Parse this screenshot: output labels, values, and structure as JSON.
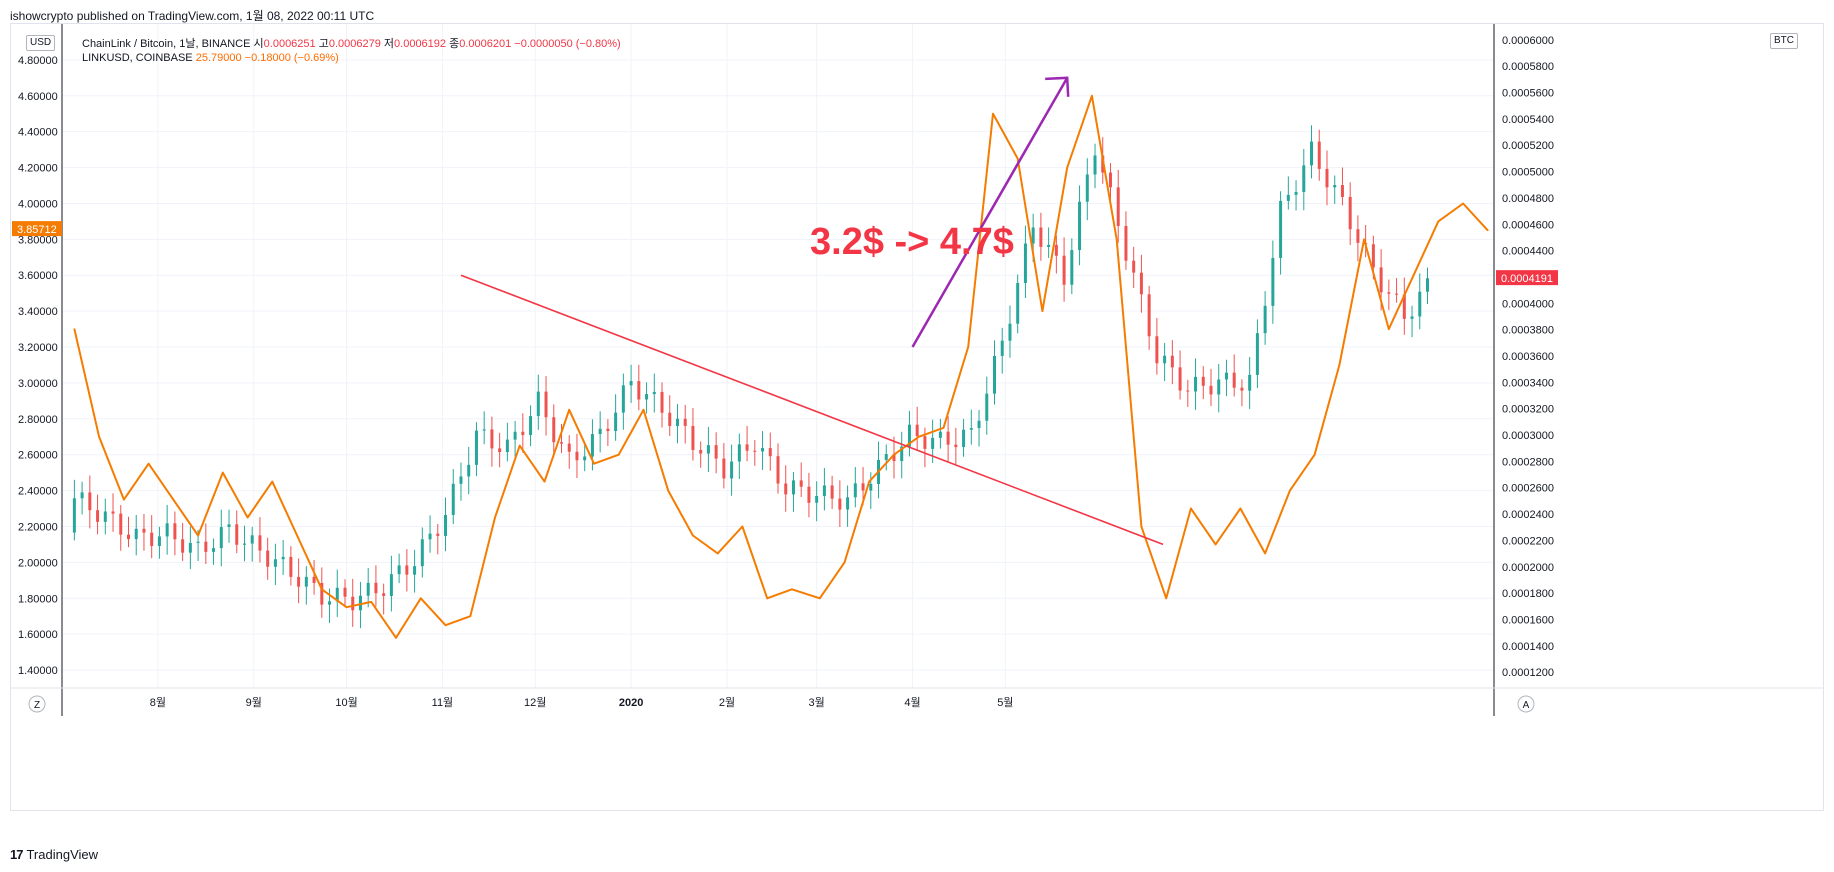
{
  "header": {
    "published_by": "ishowcrypto published on TradingView.com, 1월 08, 2022 00:11 UTC"
  },
  "legend": {
    "pair_label": "ChainLink / Bitcoin, 1날, BINANCE",
    "open_label": "시",
    "open_value": "0.0006251",
    "high_label": "고",
    "high_value": "0.0006279",
    "low_label": "저",
    "low_value": "0.0006192",
    "close_label": "종",
    "close_value": "0.0006201",
    "change": "−0.0000050 (−0.80%)",
    "link_label": "LINKUSD, COINBASE",
    "link_value": "25.79000",
    "link_change": "−0.18000 (−0.69%)"
  },
  "left_currency": "USD",
  "right_currency": "BTC",
  "annotation_text": "3.2$ -> 4.7$",
  "bottom_buttons": {
    "left": "Z",
    "right": "A"
  },
  "footer": {
    "brand": "TradingView",
    "logo": "17"
  },
  "colors": {
    "up": "#26a69a",
    "down": "#ef5350",
    "link_line": "#f57c00",
    "trendline": "#f23645",
    "arrow": "#9c27b0",
    "text_annotation": "#f23645"
  },
  "chart_data": {
    "type": "line",
    "x_tick_labels": [
      "8월",
      "9월",
      "10월",
      "11월",
      "12월",
      "2020",
      "2월",
      "3월",
      "4월",
      "5월"
    ],
    "left_axis": {
      "unit": "USD",
      "ticks": [
        "1.40000",
        "1.60000",
        "1.80000",
        "2.00000",
        "2.20000",
        "2.40000",
        "2.60000",
        "2.80000",
        "3.00000",
        "3.20000",
        "3.40000",
        "3.60000",
        "3.80000",
        "4.00000",
        "4.20000",
        "4.40000",
        "4.60000",
        "4.80000"
      ],
      "ylim": [
        1.3,
        5.0
      ],
      "current_label": "3.85712"
    },
    "right_axis": {
      "unit": "BTC",
      "ticks": [
        "0.0001200",
        "0.0001400",
        "0.0001600",
        "0.0001800",
        "0.0002000",
        "0.0002200",
        "0.0002400",
        "0.0002600",
        "0.0002800",
        "0.0003000",
        "0.0003200",
        "0.0003400",
        "0.0003600",
        "0.0003800",
        "0.0004000",
        "0.0004200",
        "0.0004400",
        "0.0004600",
        "0.0004800",
        "0.0005000",
        "0.0005200",
        "0.0005400",
        "0.0005600",
        "0.0005800",
        "0.0006000"
      ],
      "ylim": [
        0.000108,
        0.000612
      ],
      "current_label": "0.0004191"
    },
    "series": [
      {
        "name": "ChainLink / Bitcoin, 1날, BINANCE",
        "type": "candlestick",
        "axis": "right",
        "points": [
          [
            "2019-07-05",
            0.000226,
            0.000252
          ],
          [
            "2019-07-15",
            0.000248,
            0.000238
          ],
          [
            "2019-07-25",
            0.000236,
            0.000222
          ],
          [
            "2019-08-04",
            0.000221,
            0.000225
          ],
          [
            "2019-08-14",
            0.000226,
            0.000212
          ],
          [
            "2019-08-24",
            0.000212,
            0.000228
          ],
          [
            "2019-09-03",
            0.000229,
            0.000212
          ],
          [
            "2019-09-13",
            0.000213,
            0.000196
          ],
          [
            "2019-09-23",
            0.000196,
            0.000178
          ],
          [
            "2019-10-03",
            0.000178,
            0.000175
          ],
          [
            "2019-10-13",
            0.000175,
            0.000185
          ],
          [
            "2019-10-23",
            0.000185,
            0.000205
          ],
          [
            "2019-11-02",
            0.000205,
            0.00024
          ],
          [
            "2019-11-12",
            0.000241,
            0.0003
          ],
          [
            "2019-11-22",
            0.0003,
            0.00029
          ],
          [
            "2019-12-02",
            0.00029,
            0.000325
          ],
          [
            "2019-12-12",
            0.000325,
            0.00028
          ],
          [
            "2019-12-22",
            0.00028,
            0.0003
          ],
          [
            "2020-01-01",
            0.0003,
            0.00034
          ],
          [
            "2020-01-11",
            0.00034,
            0.00032
          ],
          [
            "2020-01-21",
            0.00032,
            0.000295
          ],
          [
            "2020-01-31",
            0.000295,
            0.000275
          ],
          [
            "2020-02-10",
            0.000275,
            0.000295
          ],
          [
            "2020-02-20",
            0.000295,
            0.00026
          ],
          [
            "2020-03-01",
            0.00026,
            0.000255
          ],
          [
            "2020-03-11",
            0.000255,
            0.00025
          ],
          [
            "2020-03-21",
            0.00025,
            0.000275
          ],
          [
            "2020-03-31",
            0.000275,
            0.0003
          ],
          [
            "2020-04-10",
            0.0003,
            0.000295
          ],
          [
            "2020-04-20",
            0.000295,
            0.0003
          ],
          [
            "2020-04-30",
            0.0003,
            0.00037
          ],
          [
            "2020-05-10",
            0.00037,
            0.00046
          ],
          [
            "2020-05-20",
            0.00046,
            0.00042
          ],
          [
            "2020-05-30",
            0.00042,
            0.00052
          ],
          [
            "2020-06-09",
            0.00052,
            0.00044
          ],
          [
            "2020-06-19",
            0.00044,
            0.00036
          ],
          [
            "2020-06-29",
            0.00036,
            0.000335
          ],
          [
            "2020-07-09",
            0.000335,
            0.00034
          ],
          [
            "2020-07-19",
            0.00034,
            0.00034
          ],
          [
            "2020-07-29",
            0.00034,
            0.00047
          ],
          [
            "2020-08-08",
            0.00047,
            0.000515
          ],
          [
            "2020-08-18",
            0.000515,
            0.000475
          ],
          [
            "2020-08-28",
            0.000475,
            0.000425
          ],
          [
            "2020-09-07",
            0.000425,
            0.00039
          ],
          [
            "2020-09-17",
            0.00039,
            0.00042
          ]
        ]
      },
      {
        "name": "LINKUSD, COINBASE",
        "type": "line",
        "axis": "left",
        "points": [
          [
            "2019-07-05",
            3.3
          ],
          [
            "2019-07-13",
            2.7
          ],
          [
            "2019-07-21",
            2.35
          ],
          [
            "2019-07-29",
            2.55
          ],
          [
            "2019-08-06",
            2.35
          ],
          [
            "2019-08-14",
            2.15
          ],
          [
            "2019-08-22",
            2.5
          ],
          [
            "2019-08-30",
            2.25
          ],
          [
            "2019-09-07",
            2.45
          ],
          [
            "2019-09-15",
            2.15
          ],
          [
            "2019-09-23",
            1.85
          ],
          [
            "2019-10-01",
            1.75
          ],
          [
            "2019-10-09",
            1.78
          ],
          [
            "2019-10-17",
            1.58
          ],
          [
            "2019-10-25",
            1.8
          ],
          [
            "2019-11-02",
            1.65
          ],
          [
            "2019-11-10",
            1.7
          ],
          [
            "2019-11-18",
            2.25
          ],
          [
            "2019-11-26",
            2.65
          ],
          [
            "2019-12-04",
            2.45
          ],
          [
            "2019-12-12",
            2.85
          ],
          [
            "2019-12-20",
            2.55
          ],
          [
            "2019-12-28",
            2.6
          ],
          [
            "2020-01-05",
            2.85
          ],
          [
            "2020-01-13",
            2.4
          ],
          [
            "2020-01-21",
            2.15
          ],
          [
            "2020-01-29",
            2.05
          ],
          [
            "2020-02-06",
            2.2
          ],
          [
            "2020-02-14",
            1.8
          ],
          [
            "2020-02-22",
            1.85
          ],
          [
            "2020-03-02",
            1.8
          ],
          [
            "2020-03-10",
            2.0
          ],
          [
            "2020-03-18",
            2.45
          ],
          [
            "2020-03-26",
            2.6
          ],
          [
            "2020-04-03",
            2.7
          ],
          [
            "2020-04-11",
            2.75
          ],
          [
            "2020-04-19",
            3.2
          ],
          [
            "2020-04-27",
            4.5
          ],
          [
            "2020-05-05",
            4.25
          ],
          [
            "2020-05-13",
            3.4
          ],
          [
            "2020-05-21",
            4.2
          ],
          [
            "2020-05-29",
            4.6
          ],
          [
            "2020-06-06",
            3.8
          ],
          [
            "2020-06-14",
            2.2
          ],
          [
            "2020-06-22",
            1.8
          ],
          [
            "2020-06-30",
            2.3
          ],
          [
            "2020-07-08",
            2.1
          ],
          [
            "2020-07-16",
            2.3
          ],
          [
            "2020-07-24",
            2.05
          ],
          [
            "2020-08-01",
            2.4
          ],
          [
            "2020-08-09",
            2.6
          ],
          [
            "2020-08-17",
            3.1
          ],
          [
            "2020-08-25",
            3.8
          ],
          [
            "2020-09-02",
            3.3
          ],
          [
            "2020-09-10",
            3.6
          ],
          [
            "2020-09-18",
            3.9
          ],
          [
            "2020-09-26",
            4.0
          ],
          [
            "2020-10-04",
            3.85
          ]
        ]
      }
    ],
    "annotations": [
      {
        "type": "trendline",
        "from": [
          "2019-11-07",
          3.6
        ],
        "to": [
          "2020-06-21",
          2.1
        ]
      },
      {
        "type": "arrow",
        "from": [
          "2020-04-01",
          3.2
        ],
        "to": [
          "2020-05-21",
          4.7
        ]
      },
      {
        "type": "text",
        "text": "3.2$ -> 4.7$"
      }
    ],
    "grid": true,
    "legend_position": "top-left"
  }
}
